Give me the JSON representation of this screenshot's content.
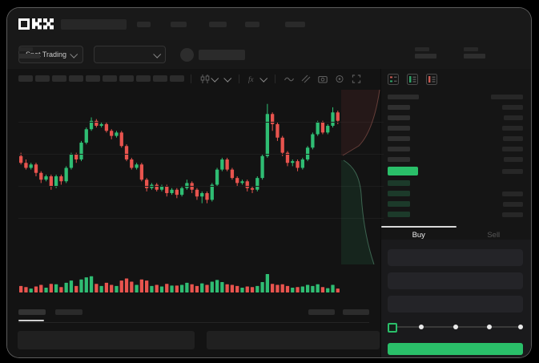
{
  "brand": {
    "name": "OKX"
  },
  "header": {
    "nav_bar_widths": [
      17,
      20,
      22,
      18,
      25
    ]
  },
  "subheader": {
    "market_selector_label": "Spot Trading",
    "stat_group_count": 5
  },
  "toolbar": {
    "timeframe_pill_count": 10
  },
  "chart_data": {
    "type": "candlestick",
    "value_range": [
      0,
      100
    ],
    "up_color": "#2fbd73",
    "down_color": "#e8544e",
    "candles": [
      [
        62,
        64,
        57,
        58
      ],
      [
        58,
        60,
        54,
        55
      ],
      [
        55,
        58,
        54,
        57
      ],
      [
        57,
        58,
        50,
        52
      ],
      [
        52,
        53,
        46,
        48
      ],
      [
        48,
        51,
        47,
        50
      ],
      [
        50,
        51,
        42,
        44
      ],
      [
        44,
        51,
        43,
        50
      ],
      [
        50,
        51,
        45,
        47
      ],
      [
        47,
        56,
        46,
        55
      ],
      [
        55,
        64,
        54,
        63
      ],
      [
        63,
        64,
        58,
        60
      ],
      [
        60,
        71,
        59,
        70
      ],
      [
        70,
        79,
        69,
        78
      ],
      [
        78,
        85,
        77,
        83
      ],
      [
        83,
        84,
        79,
        80
      ],
      [
        80,
        82,
        79,
        81
      ],
      [
        81,
        82,
        76,
        77
      ],
      [
        77,
        78,
        72,
        74
      ],
      [
        74,
        77,
        73,
        76
      ],
      [
        76,
        77,
        67,
        68
      ],
      [
        68,
        69,
        59,
        60
      ],
      [
        60,
        61,
        54,
        55
      ],
      [
        55,
        58,
        54,
        57
      ],
      [
        57,
        58,
        47,
        48
      ],
      [
        48,
        49,
        41,
        43
      ],
      [
        43,
        46,
        42,
        45
      ],
      [
        45,
        46,
        41,
        42
      ],
      [
        42,
        45,
        41,
        44
      ],
      [
        44,
        45,
        38,
        40
      ],
      [
        40,
        43,
        39,
        42
      ],
      [
        42,
        43,
        37,
        39
      ],
      [
        39,
        44,
        38,
        43
      ],
      [
        43,
        48,
        42,
        46
      ],
      [
        46,
        47,
        40,
        42
      ],
      [
        42,
        43,
        36,
        38
      ],
      [
        38,
        41,
        34,
        40
      ],
      [
        40,
        41,
        34,
        36
      ],
      [
        36,
        46,
        35,
        45
      ],
      [
        45,
        55,
        44,
        54
      ],
      [
        54,
        61,
        53,
        60
      ],
      [
        60,
        61,
        53,
        54
      ],
      [
        54,
        55,
        48,
        49
      ],
      [
        49,
        50,
        44,
        46
      ],
      [
        46,
        48,
        45,
        47
      ],
      [
        47,
        48,
        41,
        43
      ],
      [
        43,
        44,
        40,
        42
      ],
      [
        42,
        50,
        41,
        49
      ],
      [
        49,
        63,
        48,
        62
      ],
      [
        62,
        93,
        61,
        87
      ],
      [
        87,
        88,
        77,
        81
      ],
      [
        81,
        82,
        71,
        73
      ],
      [
        73,
        74,
        62,
        64
      ],
      [
        64,
        65,
        56,
        58
      ],
      [
        58,
        60,
        56,
        59
      ],
      [
        59,
        60,
        53,
        55
      ],
      [
        55,
        61,
        54,
        60
      ],
      [
        60,
        68,
        59,
        67
      ],
      [
        67,
        76,
        66,
        75
      ],
      [
        75,
        83,
        74,
        82
      ],
      [
        82,
        83,
        75,
        76
      ],
      [
        76,
        81,
        75,
        80
      ],
      [
        80,
        91,
        79,
        88
      ],
      [
        88,
        89,
        81,
        83
      ]
    ],
    "volumes": [
      30,
      25,
      18,
      28,
      35,
      22,
      40,
      38,
      25,
      45,
      55,
      30,
      60,
      70,
      75,
      40,
      30,
      45,
      35,
      30,
      55,
      65,
      50,
      35,
      60,
      55,
      30,
      35,
      28,
      40,
      32,
      32,
      35,
      45,
      38,
      30,
      42,
      35,
      50,
      58,
      48,
      38,
      35,
      30,
      22,
      28,
      25,
      30,
      48,
      85,
      40,
      35,
      38,
      30,
      22,
      25,
      28,
      35,
      30,
      38,
      25,
      20,
      35,
      18
    ]
  },
  "orderbook": {
    "header_bars": {
      "left_width": 39,
      "right_width": 40
    },
    "asks": [
      {
        "price_w": 28,
        "amount_w": 26
      },
      {
        "price_w": 28,
        "amount_w": 24
      },
      {
        "price_w": 28,
        "amount_w": 26
      },
      {
        "price_w": 28,
        "amount_w": 25
      },
      {
        "price_w": 28,
        "amount_w": 26
      },
      {
        "price_w": 28,
        "amount_w": 24
      }
    ],
    "last_price": {
      "price_w": 38,
      "amount_w": 26,
      "color": "#2abf69"
    },
    "bids": [
      {
        "price_w": 28,
        "amount_w": 0
      },
      {
        "price_w": 28,
        "amount_w": 26
      },
      {
        "price_w": 28,
        "amount_w": 25
      },
      {
        "price_w": 28,
        "amount_w": 26
      }
    ]
  },
  "trade": {
    "buy_tab_label": "Buy",
    "sell_tab_label": "Sell",
    "input_count": 3,
    "slider_stop_count": 5,
    "buy_button_label": ""
  }
}
